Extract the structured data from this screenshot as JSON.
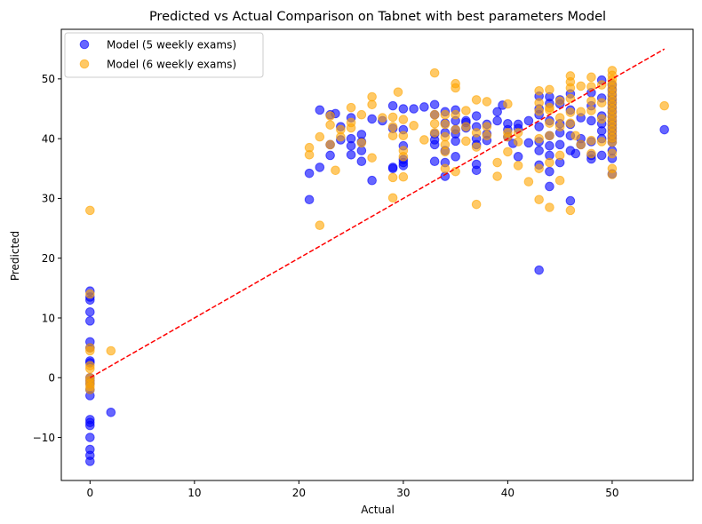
{
  "chart_data": {
    "type": "scatter",
    "title": "Predicted vs Actual Comparison on Tabnet with best parameters Model",
    "xlabel": "Actual",
    "ylabel": "Predicted",
    "xlim": [
      -2.75,
      57.75
    ],
    "ylim": [
      -17.2,
      58.3
    ],
    "xticks": [
      0,
      10,
      20,
      30,
      40,
      50
    ],
    "yticks": [
      -10,
      0,
      10,
      20,
      30,
      40,
      50
    ],
    "grid": false,
    "legend_position": "top-left",
    "reference_line": {
      "from": [
        0,
        0
      ],
      "to": [
        55,
        55
      ],
      "color": "#ff0000",
      "style": "dashed"
    },
    "series": [
      {
        "name": "Model (5 weekly exams)",
        "color": "#0000ff",
        "points": [
          [
            0,
            14.5
          ],
          [
            0,
            13.5
          ],
          [
            0,
            13
          ],
          [
            0,
            11
          ],
          [
            0,
            9.5
          ],
          [
            0,
            6
          ],
          [
            0,
            5
          ],
          [
            0,
            2.8
          ],
          [
            0,
            2.5
          ],
          [
            0,
            0
          ],
          [
            0,
            -0.5
          ],
          [
            0,
            -1
          ],
          [
            0,
            -2
          ],
          [
            0,
            -3
          ],
          [
            0,
            -7
          ],
          [
            0,
            -7.5
          ],
          [
            0,
            -8
          ],
          [
            0,
            -10
          ],
          [
            0,
            -12
          ],
          [
            0,
            -13
          ],
          [
            0,
            -14
          ],
          [
            2,
            -5.8
          ],
          [
            21,
            34.2
          ],
          [
            21,
            29.8
          ],
          [
            22,
            44.8
          ],
          [
            22,
            35.2
          ],
          [
            23,
            44
          ],
          [
            23,
            39
          ],
          [
            23,
            37.2
          ],
          [
            23.5,
            44.2
          ],
          [
            24,
            42
          ],
          [
            24,
            39.8
          ],
          [
            25,
            43.5
          ],
          [
            25,
            40
          ],
          [
            25,
            38.8
          ],
          [
            25,
            37.3
          ],
          [
            26,
            40.7
          ],
          [
            26,
            39.5
          ],
          [
            26,
            38
          ],
          [
            26,
            36.2
          ],
          [
            27,
            43.3
          ],
          [
            27,
            33
          ],
          [
            28,
            43
          ],
          [
            29,
            45.5
          ],
          [
            29,
            41.7
          ],
          [
            29,
            35.2
          ],
          [
            29,
            35
          ],
          [
            30,
            45
          ],
          [
            30,
            41.5
          ],
          [
            30,
            38.8
          ],
          [
            30,
            36.5
          ],
          [
            30,
            36
          ],
          [
            30,
            35.5
          ],
          [
            31,
            45
          ],
          [
            32,
            45.3
          ],
          [
            33,
            45.7
          ],
          [
            33,
            44
          ],
          [
            33,
            40.8
          ],
          [
            33,
            39.8
          ],
          [
            33,
            39
          ],
          [
            33,
            36.2
          ],
          [
            34,
            44.5
          ],
          [
            34,
            42.6
          ],
          [
            34,
            41
          ],
          [
            34,
            38
          ],
          [
            34,
            36
          ],
          [
            34,
            33.7
          ],
          [
            35,
            44.8
          ],
          [
            35,
            43
          ],
          [
            35,
            41.5
          ],
          [
            35,
            40.8
          ],
          [
            35,
            39.6
          ],
          [
            35,
            37
          ],
          [
            36,
            43
          ],
          [
            36,
            42.7
          ],
          [
            36,
            41.8
          ],
          [
            37,
            43.8
          ],
          [
            37,
            42
          ],
          [
            37,
            40
          ],
          [
            37,
            39
          ],
          [
            37,
            35.7
          ],
          [
            37,
            34.7
          ],
          [
            38,
            42.4
          ],
          [
            38,
            40.8
          ],
          [
            38,
            39.7
          ],
          [
            39,
            44.5
          ],
          [
            39,
            43
          ],
          [
            39.5,
            45.6
          ],
          [
            40,
            42.5
          ],
          [
            40,
            41.5
          ],
          [
            40,
            40.3
          ],
          [
            40.5,
            39.2
          ],
          [
            41,
            42.4
          ],
          [
            41,
            41.7
          ],
          [
            41,
            37
          ],
          [
            42,
            39.3
          ],
          [
            42,
            43
          ],
          [
            43,
            45
          ],
          [
            43,
            47.1
          ],
          [
            43,
            44
          ],
          [
            43,
            42
          ],
          [
            43,
            39.5
          ],
          [
            43,
            38
          ],
          [
            43,
            35.6
          ],
          [
            43,
            18
          ],
          [
            44,
            47
          ],
          [
            44,
            45.9
          ],
          [
            44,
            43
          ],
          [
            44,
            40.5
          ],
          [
            44,
            38.8
          ],
          [
            44,
            37.2
          ],
          [
            44,
            34.5
          ],
          [
            44,
            32
          ],
          [
            45,
            46.5
          ],
          [
            45,
            45.8
          ],
          [
            45,
            42.5
          ],
          [
            45,
            41
          ],
          [
            45,
            39
          ],
          [
            45,
            36
          ],
          [
            46,
            47.5
          ],
          [
            46,
            44.8
          ],
          [
            46,
            42.4
          ],
          [
            46,
            40.5
          ],
          [
            46,
            38
          ],
          [
            46,
            29.6
          ],
          [
            46.5,
            37.5
          ],
          [
            47,
            43.5
          ],
          [
            47,
            40
          ],
          [
            47,
            39
          ],
          [
            48,
            47.7
          ],
          [
            48,
            45.5
          ],
          [
            48,
            43
          ],
          [
            48,
            39.5
          ],
          [
            48,
            37.2
          ],
          [
            48,
            36.6
          ],
          [
            49,
            49.8
          ],
          [
            49,
            46.8
          ],
          [
            49,
            43.8
          ],
          [
            49,
            42.5
          ],
          [
            49,
            41.3
          ],
          [
            49,
            40
          ],
          [
            49,
            37.2
          ],
          [
            50,
            49
          ],
          [
            50,
            48.2
          ],
          [
            50,
            47.3
          ],
          [
            50,
            46.6
          ],
          [
            50,
            46
          ],
          [
            50,
            45.2
          ],
          [
            50,
            44.5
          ],
          [
            50,
            43.7
          ],
          [
            50,
            43
          ],
          [
            50,
            42.4
          ],
          [
            50,
            41.8
          ],
          [
            50,
            41.2
          ],
          [
            50,
            40.5
          ],
          [
            50,
            40
          ],
          [
            50,
            39.4
          ],
          [
            50,
            38
          ],
          [
            50,
            36.7
          ],
          [
            50,
            34.1
          ],
          [
            55,
            41.5
          ]
        ]
      },
      {
        "name": "Model (6 weekly exams)",
        "color": "#ffa500",
        "points": [
          [
            0,
            28
          ],
          [
            0,
            14
          ],
          [
            0,
            5
          ],
          [
            0,
            4.5
          ],
          [
            0,
            2
          ],
          [
            0,
            1.5
          ],
          [
            0,
            0
          ],
          [
            0,
            -0.5
          ],
          [
            0,
            -1
          ],
          [
            0,
            -1.5
          ],
          [
            0,
            -2
          ],
          [
            2,
            4.5
          ],
          [
            21,
            38.5
          ],
          [
            21,
            37.3
          ],
          [
            22,
            40.3
          ],
          [
            22,
            25.5
          ],
          [
            23,
            43.8
          ],
          [
            23,
            42.3
          ],
          [
            23,
            39
          ],
          [
            23.5,
            34.7
          ],
          [
            24,
            41.5
          ],
          [
            24,
            40.3
          ],
          [
            25,
            45.2
          ],
          [
            25,
            42.7
          ],
          [
            25,
            41.8
          ],
          [
            26,
            44
          ],
          [
            26,
            39.3
          ],
          [
            27,
            47
          ],
          [
            27,
            45.7
          ],
          [
            27,
            36.8
          ],
          [
            28,
            43.5
          ],
          [
            29,
            43.6
          ],
          [
            29,
            42
          ],
          [
            29,
            40.5
          ],
          [
            29,
            33.5
          ],
          [
            29,
            30.1
          ],
          [
            29.5,
            47.8
          ],
          [
            30,
            43.2
          ],
          [
            30,
            40.5
          ],
          [
            30,
            38
          ],
          [
            30,
            37
          ],
          [
            30,
            33.6
          ],
          [
            31,
            42.2
          ],
          [
            32,
            39.8
          ],
          [
            33,
            51
          ],
          [
            33,
            44
          ],
          [
            33,
            42.5
          ],
          [
            33,
            41
          ],
          [
            34,
            44
          ],
          [
            34,
            42.4
          ],
          [
            34,
            40.3
          ],
          [
            34,
            39
          ],
          [
            34,
            37.8
          ],
          [
            34,
            35
          ],
          [
            35,
            49.2
          ],
          [
            35,
            48.5
          ],
          [
            35,
            44
          ],
          [
            35,
            41.5
          ],
          [
            35,
            34.5
          ],
          [
            36,
            44.7
          ],
          [
            36,
            42
          ],
          [
            36,
            39.6
          ],
          [
            37,
            46.5
          ],
          [
            37,
            41
          ],
          [
            37,
            38.6
          ],
          [
            37,
            29
          ],
          [
            38,
            46.2
          ],
          [
            38,
            42
          ],
          [
            38,
            40.5
          ],
          [
            39,
            36
          ],
          [
            39,
            33.7
          ],
          [
            40,
            45.8
          ],
          [
            40,
            41
          ],
          [
            40,
            40.3
          ],
          [
            40,
            37.8
          ],
          [
            41,
            41
          ],
          [
            41,
            39.5
          ],
          [
            41,
            35.5
          ],
          [
            42,
            32.8
          ],
          [
            43,
            48
          ],
          [
            43,
            46
          ],
          [
            43,
            44.6
          ],
          [
            43,
            40
          ],
          [
            43,
            35
          ],
          [
            43,
            29.8
          ],
          [
            44,
            48.2
          ],
          [
            44,
            45.2
          ],
          [
            44,
            44.8
          ],
          [
            44,
            42.6
          ],
          [
            44,
            40.5
          ],
          [
            44,
            36
          ],
          [
            44,
            28.5
          ],
          [
            45,
            46.3
          ],
          [
            45,
            43.5
          ],
          [
            45,
            42
          ],
          [
            45,
            37.2
          ],
          [
            45,
            33
          ],
          [
            46,
            50.5
          ],
          [
            46,
            49.5
          ],
          [
            46,
            48.5
          ],
          [
            46,
            46.7
          ],
          [
            46,
            44.4
          ],
          [
            46,
            42.6
          ],
          [
            46,
            28
          ],
          [
            46.5,
            40.5
          ],
          [
            47,
            48.8
          ],
          [
            47,
            44.5
          ],
          [
            47,
            39
          ],
          [
            48,
            50.3
          ],
          [
            48,
            48.7
          ],
          [
            48,
            46.3
          ],
          [
            48,
            44.7
          ],
          [
            48,
            39.7
          ],
          [
            48,
            37.5
          ],
          [
            49,
            49
          ],
          [
            49,
            46
          ],
          [
            49,
            43.3
          ],
          [
            49,
            39.5
          ],
          [
            50,
            51.4
          ],
          [
            50,
            50.6
          ],
          [
            50,
            49.9
          ],
          [
            50,
            49.2
          ],
          [
            50,
            48.5
          ],
          [
            50,
            47.8
          ],
          [
            50,
            47.1
          ],
          [
            50,
            46.4
          ],
          [
            50,
            45.7
          ],
          [
            50,
            45
          ],
          [
            50,
            44.3
          ],
          [
            50,
            43.6
          ],
          [
            50,
            42.9
          ],
          [
            50,
            42.2
          ],
          [
            50,
            41.5
          ],
          [
            50,
            40.8
          ],
          [
            50,
            40.1
          ],
          [
            50,
            39.4
          ],
          [
            50,
            37.5
          ],
          [
            50,
            35
          ],
          [
            50,
            34
          ],
          [
            55,
            45.5
          ]
        ]
      }
    ]
  }
}
